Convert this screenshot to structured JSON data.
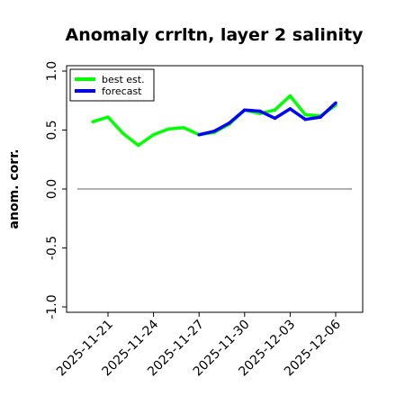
{
  "chart_data": {
    "type": "line",
    "title": "Anomaly crrltn, layer 2 salinity",
    "xlabel": "",
    "ylabel": "anom. corr.",
    "ylim": [
      -1.0,
      1.0
    ],
    "x_tick_labels": [
      "2025-11-21",
      "2025-11-24",
      "2025-11-27",
      "2025-11-30",
      "2025-12-03",
      "2025-12-06"
    ],
    "x_tick_colors": [
      "#000000",
      "#000000",
      "#228B22",
      "#000000",
      "#000000",
      "#000000"
    ],
    "y_ticks": [
      -1.0,
      -0.5,
      0.0,
      0.5,
      1.0
    ],
    "y_tick_labels": [
      "-1.0",
      "-0.5",
      "0.0",
      "0.5",
      "1.0"
    ],
    "reference_line": {
      "y": 0.0,
      "color": "#808080"
    },
    "legend_position": "upper-left",
    "grid": false,
    "series": [
      {
        "name": "best est.",
        "color": "#00ff00",
        "x": [
          "2025-11-20",
          "2025-11-21",
          "2025-11-22",
          "2025-11-23",
          "2025-11-24",
          "2025-11-25",
          "2025-11-26",
          "2025-11-27",
          "2025-11-28",
          "2025-11-29",
          "2025-11-30",
          "2025-12-01",
          "2025-12-02",
          "2025-12-03",
          "2025-12-04",
          "2025-12-05",
          "2025-12-06"
        ],
        "values": [
          0.57,
          0.61,
          0.47,
          0.37,
          0.46,
          0.51,
          0.52,
          0.46,
          0.48,
          0.55,
          0.67,
          0.64,
          0.67,
          0.79,
          0.63,
          0.62,
          0.71
        ]
      },
      {
        "name": "forecast",
        "color": "#0000ff",
        "x": [
          "2025-11-27",
          "2025-11-28",
          "2025-11-29",
          "2025-11-30",
          "2025-12-01",
          "2025-12-02",
          "2025-12-03",
          "2025-12-04",
          "2025-12-05",
          "2025-12-06"
        ],
        "values": [
          0.46,
          0.49,
          0.56,
          0.67,
          0.66,
          0.6,
          0.68,
          0.59,
          0.61,
          0.73
        ]
      }
    ]
  }
}
